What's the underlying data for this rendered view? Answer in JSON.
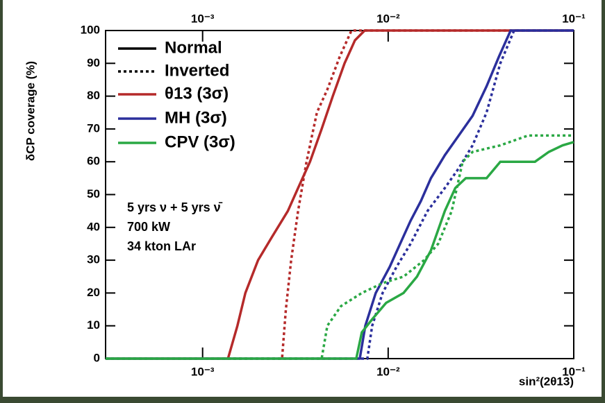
{
  "chart_data": {
    "type": "line",
    "ylabel": "δCP coverage (%)",
    "xlabel": "sin²(2θ13)",
    "xlog": true,
    "xlim": [
      0.0003,
      0.1
    ],
    "ylim": [
      0,
      100
    ],
    "xticks": [
      {
        "value": 0.001,
        "label": "10⁻³"
      },
      {
        "value": 0.01,
        "label": "10⁻²"
      },
      {
        "value": 0.1,
        "label": "10⁻¹"
      }
    ],
    "yticks": [
      0,
      10,
      20,
      30,
      40,
      50,
      60,
      70,
      80,
      90,
      100
    ],
    "line_styles": [
      {
        "label": "Normal",
        "dash": "solid"
      },
      {
        "label": "Inverted",
        "dash": "dotted"
      }
    ],
    "annotations": [
      "5 yrs ν + 5 yrs ν̄",
      "700 kW",
      "34 kton LAr"
    ],
    "series": [
      {
        "name": "θ13 (3σ)",
        "color": "#b52a2a",
        "dash": "solid",
        "x": [
          0.0003,
          0.00137,
          0.00154,
          0.0017,
          0.00199,
          0.00236,
          0.00288,
          0.00327,
          0.00379,
          0.00438,
          0.00503,
          0.00582,
          0.00662,
          0.00747,
          0.1
        ],
        "values": [
          0,
          0,
          10,
          20,
          30,
          37,
          45,
          52,
          60,
          70,
          80,
          90,
          97,
          100,
          100
        ]
      },
      {
        "name": "θ13 (3σ)",
        "color": "#b52a2a",
        "dash": "dotted",
        "x": [
          0.0003,
          0.00268,
          0.00281,
          0.003,
          0.00327,
          0.00363,
          0.00413,
          0.0047,
          0.00548,
          0.00634,
          0.1
        ],
        "values": [
          0,
          0,
          15,
          30,
          45,
          60,
          75,
          82,
          92,
          100,
          100
        ]
      },
      {
        "name": "MH (3σ)",
        "color": "#2b2f9c",
        "dash": "solid",
        "x": [
          0.0003,
          0.00703,
          0.00753,
          0.00857,
          0.0102,
          0.0116,
          0.0132,
          0.015,
          0.017,
          0.0202,
          0.024,
          0.0285,
          0.0339,
          0.0395,
          0.0457,
          0.1
        ],
        "values": [
          0,
          0,
          10,
          20,
          28,
          35,
          42,
          48,
          55,
          62,
          68,
          74,
          83,
          92,
          100,
          100
        ]
      },
      {
        "name": "MH (3σ)",
        "color": "#2b2f9c",
        "dash": "dotted",
        "x": [
          0.0003,
          0.00772,
          0.0082,
          0.00933,
          0.0111,
          0.0132,
          0.0163,
          0.0202,
          0.024,
          0.0285,
          0.0339,
          0.0402,
          0.0477,
          0.1
        ],
        "values": [
          0,
          0,
          10,
          20,
          28,
          35,
          45,
          52,
          58,
          65,
          75,
          90,
          100,
          100
        ]
      },
      {
        "name": "CPV (3σ)",
        "color": "#2aa844",
        "dash": "solid",
        "x": [
          0.0003,
          0.00673,
          0.00721,
          0.0082,
          0.00975,
          0.0121,
          0.0143,
          0.017,
          0.0202,
          0.023,
          0.0262,
          0.0339,
          0.0402,
          0.0618,
          0.0734,
          0.0871,
          0.1
        ],
        "values": [
          0,
          0,
          8,
          12,
          17,
          20,
          25,
          33,
          45,
          52,
          55,
          55,
          60,
          60,
          63,
          65,
          66
        ]
      },
      {
        "name": "CPV (3σ)",
        "color": "#2aa844",
        "dash": "dotted",
        "x": [
          0.0003,
          0.00438,
          0.0047,
          0.00557,
          0.00721,
          0.00933,
          0.0121,
          0.0156,
          0.0186,
          0.022,
          0.0252,
          0.0285,
          0.0402,
          0.0568,
          0.08,
          0.1
        ],
        "values": [
          0,
          0,
          10,
          16,
          20,
          23,
          25,
          30,
          35,
          45,
          60,
          63,
          65,
          68,
          68,
          68
        ]
      }
    ]
  }
}
